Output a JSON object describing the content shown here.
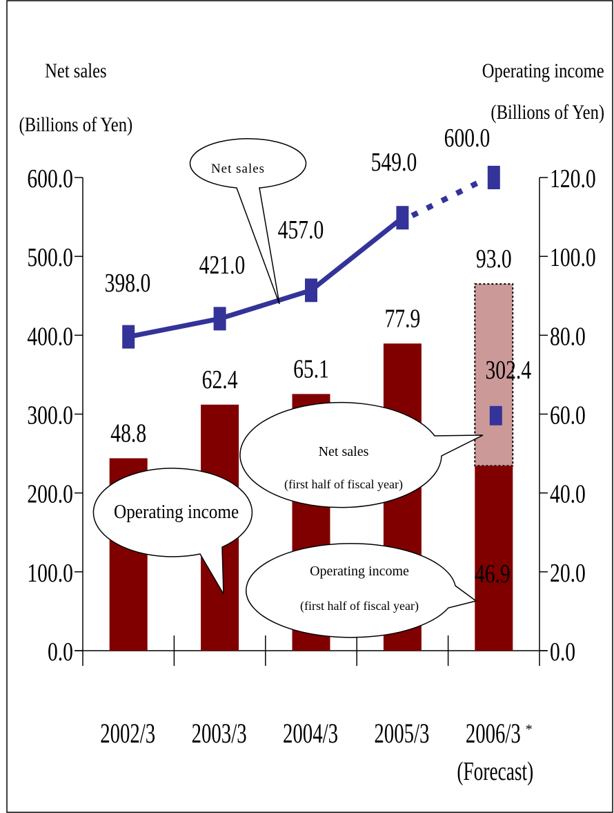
{
  "chart_data": {
    "type": "bar",
    "categories": [
      "2002/3",
      "2003/3",
      "2004/3",
      "2005/3",
      "2006/3"
    ],
    "category_note": {
      "index": 4,
      "mark": "*",
      "sub": "(Forecast)"
    },
    "left_axis": {
      "title": "Net sales",
      "unit": "(Billions of Yen)",
      "range": [
        0,
        600
      ],
      "ticks": [
        "0.0",
        "100.0",
        "200.0",
        "300.0",
        "400.0",
        "500.0",
        "600.0"
      ]
    },
    "right_axis": {
      "title": "Operating income",
      "unit": "(Billions of Yen)",
      "range": [
        0,
        120
      ],
      "ticks": [
        "0.0",
        "20.0",
        "40.0",
        "60.0",
        "80.0",
        "100.0",
        "120.0"
      ]
    },
    "operating_income": {
      "values": [
        48.8,
        62.4,
        65.1,
        77.9,
        93.0
      ],
      "labels": [
        "48.8",
        "62.4",
        "65.1",
        "77.9",
        "93.0"
      ],
      "forecast_index": 4,
      "first_half": {
        "value": 46.9,
        "label": "46.9"
      }
    },
    "net_sales": {
      "values": [
        398.0,
        421.0,
        457.0,
        549.0,
        600.0
      ],
      "labels": [
        "398.0",
        "421.0",
        "457.0",
        "549.0",
        "600.0"
      ],
      "forecast_index": 4,
      "first_half": {
        "value": 302.4,
        "label": "302.4"
      }
    },
    "callouts": {
      "net_sales": "Net sales",
      "operating_income": "Operating income",
      "net_sales_half_line1": "Net sales",
      "net_sales_half_line2": "(first half of fiscal year)",
      "op_income_half_line1": "Operating income",
      "op_income_half_line2": "(first half of fiscal year)"
    },
    "colors": {
      "bar": "#800000",
      "bar_forecast": "#cc9999",
      "line": "#333399",
      "axis": "#000000"
    },
    "grid": false,
    "legend": "none"
  }
}
